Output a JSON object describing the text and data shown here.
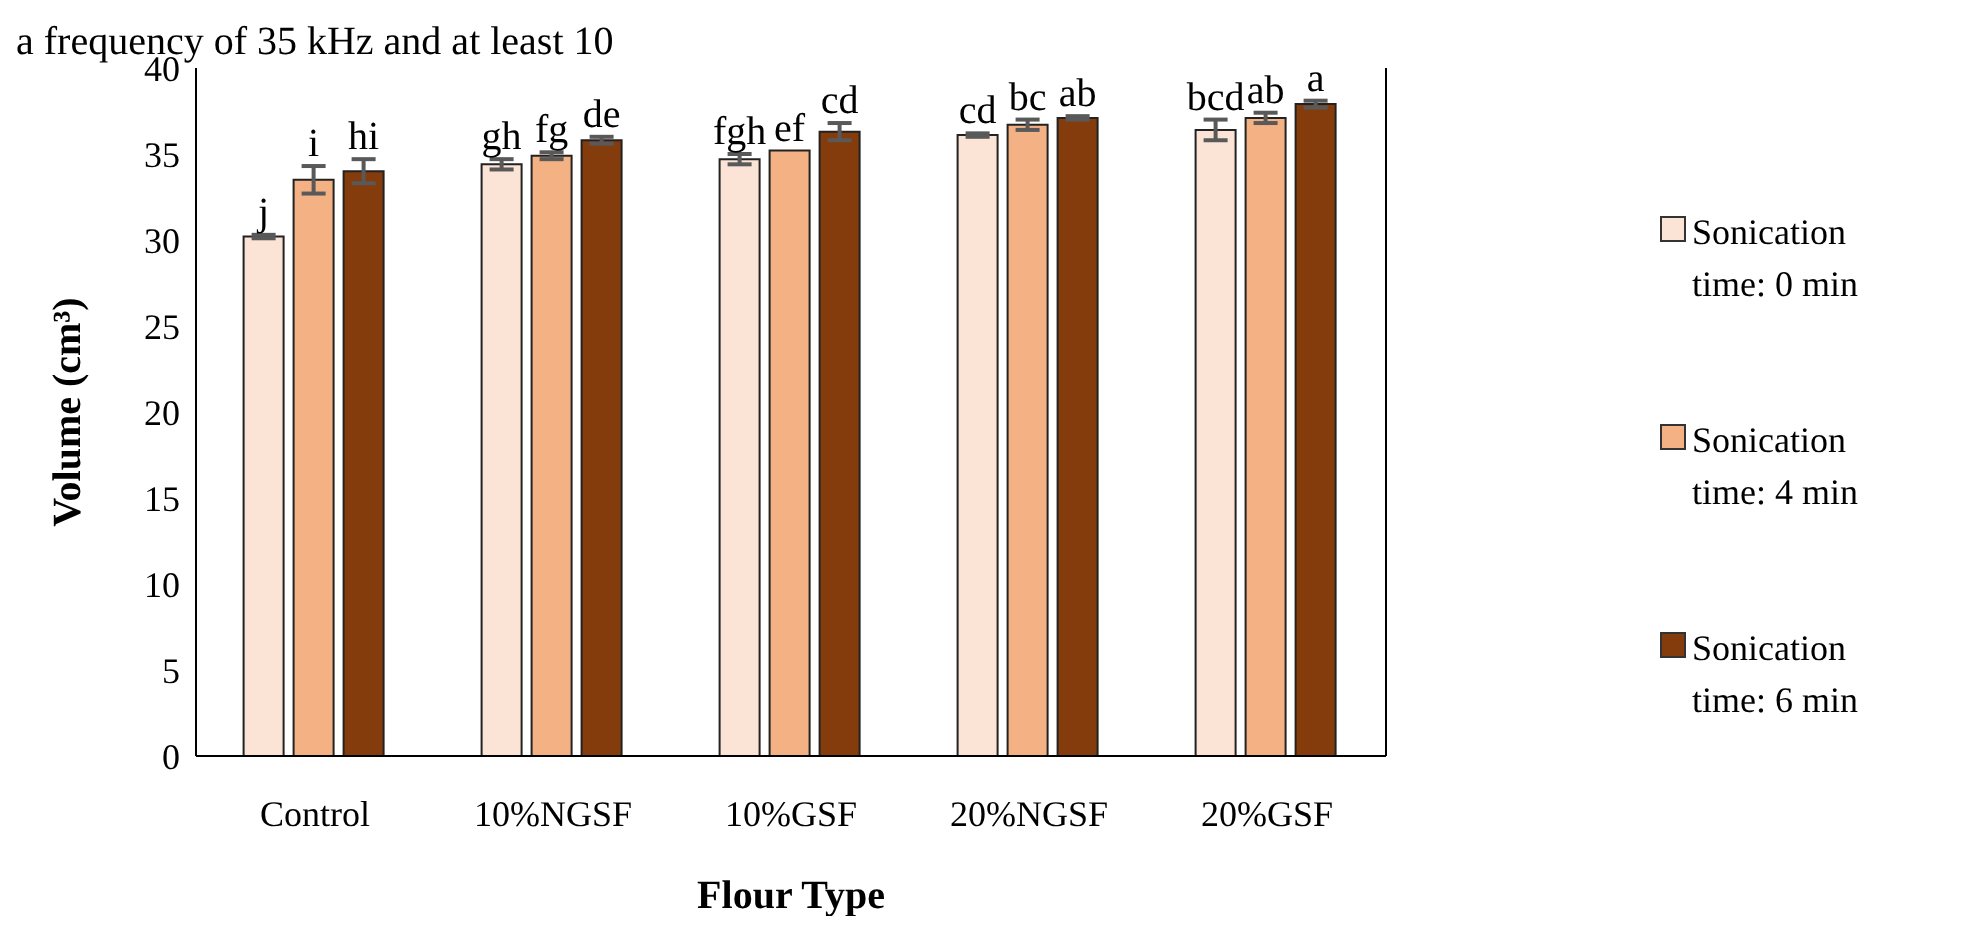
{
  "chart_data": {
    "type": "bar",
    "xlabel": "Flour Type",
    "ylabel": "Volume (cm³)",
    "annotations": [
      "a frequency of 35 kHz and at least 10"
    ],
    "categories": [
      "Control",
      "10%NGSF",
      "10%GSF",
      "20%NGSF",
      "20%GSF"
    ],
    "series": [
      {
        "name": "Sonication time: 0 min",
        "color": "#fbe4d6",
        "values": [
          30.2,
          34.4,
          34.7,
          36.1,
          36.4
        ],
        "errors": [
          0.1,
          0.3,
          0.3,
          0.1,
          0.6
        ],
        "value_labels": [
          "j",
          "gh",
          "fgh",
          "cd",
          "bcd"
        ]
      },
      {
        "name": "Sonication time: 4 min",
        "color": "#f4b183",
        "values": [
          33.5,
          34.9,
          35.2,
          36.7,
          37.1
        ],
        "errors": [
          0.8,
          0.2,
          null,
          0.3,
          0.3
        ],
        "value_labels": [
          "i",
          "fg",
          "ef",
          "bc",
          "ab"
        ]
      },
      {
        "name": "Sonication time: 6 min",
        "color": "#843c0c",
        "values": [
          34.0,
          35.8,
          36.3,
          37.1,
          37.9
        ],
        "errors": [
          0.7,
          0.2,
          0.5,
          0.1,
          0.2
        ],
        "value_labels": [
          "hi",
          "de",
          "cd",
          "ab",
          "a"
        ]
      }
    ],
    "ylim": [
      0,
      40
    ],
    "yticks": [
      0,
      5,
      10,
      15,
      20,
      25,
      30,
      35,
      40
    ],
    "grid": false,
    "legend": "right"
  }
}
